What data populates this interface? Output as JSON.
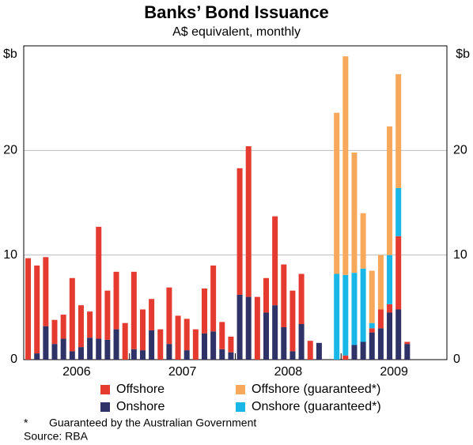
{
  "chart_data": {
    "type": "stacked_bar",
    "title": "Banks’ Bond Issuance",
    "subtitle": "A$ equivalent, monthly",
    "y_label": "$b",
    "categories": [
      "2006",
      null,
      null,
      null,
      null,
      null,
      null,
      null,
      null,
      null,
      null,
      null,
      "2007",
      null,
      null,
      null,
      null,
      null,
      null,
      null,
      null,
      null,
      null,
      null,
      "2008",
      null,
      null,
      null,
      null,
      null,
      null,
      null,
      null,
      null,
      null,
      null,
      "2009",
      null,
      null,
      null,
      null,
      null,
      null,
      null,
      null,
      null,
      null,
      null
    ],
    "series": [
      {
        "name": "Onshore",
        "color": "#2e3267",
        "values": [
          0,
          0.6,
          3.2,
          1.5,
          2.0,
          0.8,
          1.2,
          2.1,
          2.0,
          1.9,
          2.9,
          0,
          1.0,
          0.9,
          2.8,
          0,
          1.5,
          0,
          0.9,
          0,
          2.5,
          2.7,
          1.0,
          0.7,
          6.2,
          6.0,
          0,
          4.5,
          5.2,
          3.1,
          0.8,
          3.4,
          0,
          1.6,
          0,
          0,
          0,
          1.4,
          1.7,
          2.6,
          3.0,
          4.5,
          4.8,
          1.5,
          null,
          null,
          null,
          null
        ]
      },
      {
        "name": "Offshore",
        "color": "#e53a2f",
        "values": [
          9.7,
          8.4,
          6.6,
          2.3,
          2.3,
          7.0,
          4.0,
          2.5,
          10.7,
          4.7,
          5.5,
          3.5,
          7.4,
          3.9,
          3.0,
          2.9,
          5.4,
          4.2,
          3.0,
          2.9,
          4.3,
          6.3,
          2.6,
          1.5,
          12.1,
          14.4,
          6.0,
          3.3,
          8.5,
          6.0,
          5.8,
          4.8,
          1.8,
          0,
          0,
          0,
          0.4,
          0,
          0,
          0.4,
          1.8,
          0.8,
          7.0,
          0.2,
          null,
          null,
          null,
          null
        ]
      },
      {
        "name": "Onshore (guaranteed*)",
        "color": "#18b7e8",
        "values": [
          null,
          null,
          null,
          null,
          null,
          null,
          null,
          null,
          null,
          null,
          null,
          null,
          null,
          null,
          null,
          null,
          null,
          null,
          null,
          null,
          null,
          null,
          null,
          null,
          null,
          null,
          null,
          null,
          null,
          null,
          null,
          null,
          null,
          null,
          null,
          8.2,
          7.7,
          6.9,
          7.0,
          0.5,
          0,
          4.7,
          4.6,
          0,
          null,
          null,
          null,
          null
        ]
      },
      {
        "name": "Offshore (guaranteed*)",
        "color": "#f7a85a",
        "values": [
          null,
          null,
          null,
          null,
          null,
          null,
          null,
          null,
          null,
          null,
          null,
          null,
          null,
          null,
          null,
          null,
          null,
          null,
          null,
          null,
          null,
          null,
          null,
          null,
          null,
          null,
          null,
          null,
          null,
          null,
          null,
          null,
          null,
          null,
          null,
          15.4,
          20.9,
          11.5,
          5.3,
          5.0,
          5.2,
          12.3,
          10.9,
          0,
          null,
          null,
          null,
          null
        ]
      }
    ],
    "ylim": [
      0,
      30
    ],
    "yticks": [
      0,
      10,
      20
    ],
    "grid": true,
    "footnote": {
      "marker": "*",
      "text": "Guaranteed by the Australian Government"
    },
    "source": "Source: RBA"
  }
}
